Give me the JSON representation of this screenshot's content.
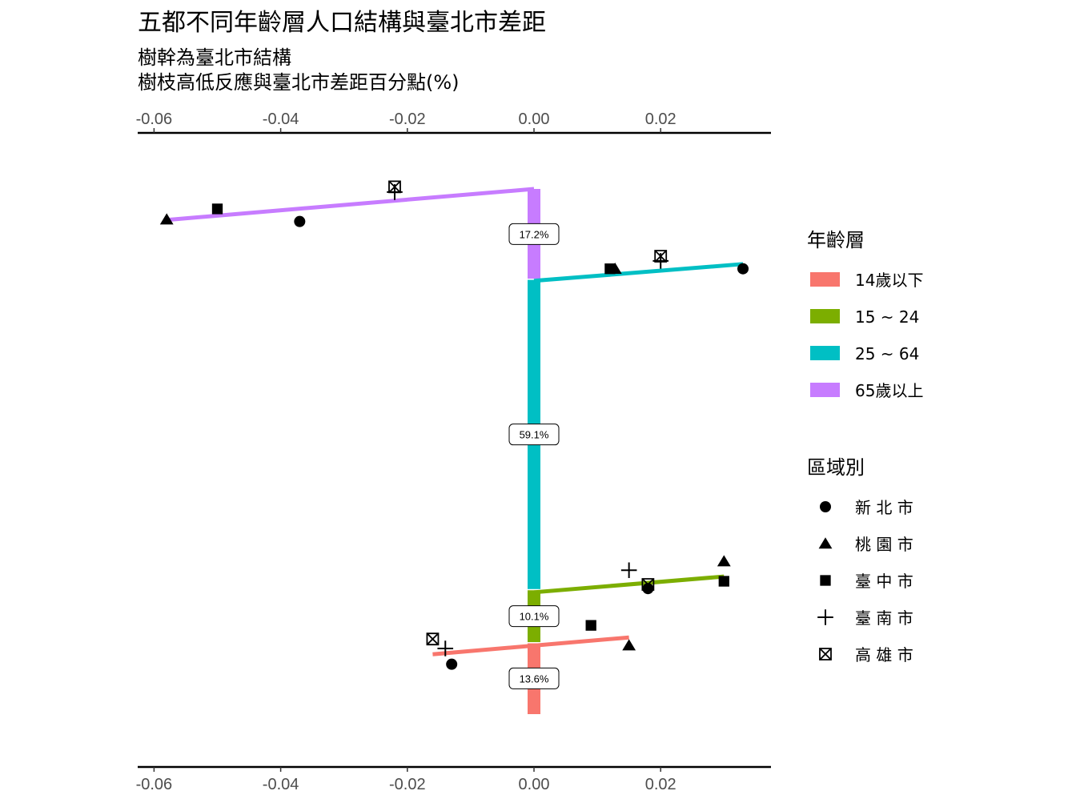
{
  "chart_data": {
    "type": "scatter",
    "title": "五都不同年齡層人口結構與臺北市差距",
    "subtitle_lines": [
      "樹幹為臺北市結構",
      "樹枝高低反應與臺北市差距百分點(%)"
    ],
    "xlim": [
      -0.062,
      0.038
    ],
    "x_ticks": [
      -0.06,
      -0.04,
      -0.02,
      0.0,
      0.02
    ],
    "x_tick_labels": [
      "-0.06",
      "-0.04",
      "-0.02",
      "0.00",
      "0.02"
    ],
    "x_axis_position": "top-and-bottom",
    "grid": false,
    "trunk": [
      {
        "group": "14歲以下",
        "share": 13.6,
        "label": "13.6%"
      },
      {
        "group": "15 ~ 24",
        "share": 10.1,
        "label": "10.1%"
      },
      {
        "group": "25 ~ 64",
        "share": 59.1,
        "label": "59.1%"
      },
      {
        "group": "65歲以上",
        "share": 17.2,
        "label": "17.2%"
      }
    ],
    "branches": [
      {
        "group": "65歲以上",
        "x": [
          0,
          -0.058
        ],
        "y": [
          100,
          94.1
        ]
      },
      {
        "group": "25 ~ 64",
        "x": [
          0,
          0.033
        ],
        "y": [
          82.5,
          85.7
        ]
      },
      {
        "group": "15 ~ 24",
        "x": [
          0,
          0.03
        ],
        "y": [
          23.2,
          26.2
        ]
      },
      {
        "group": "14歲以下",
        "x": [
          -0.016,
          0.015
        ],
        "y": [
          11.4,
          14.6
        ]
      }
    ],
    "points": [
      {
        "group": "65歲以上",
        "region": "新 北 市",
        "x": -0.037,
        "y": 93.8
      },
      {
        "group": "65歲以上",
        "region": "桃 園 市",
        "x": -0.058,
        "y": 94.2
      },
      {
        "group": "65歲以上",
        "region": "臺 中 市",
        "x": -0.05,
        "y": 96.2
      },
      {
        "group": "65歲以上",
        "region": "臺 南 市",
        "x": -0.022,
        "y": 99.4
      },
      {
        "group": "65歲以上",
        "region": "高 雄 市",
        "x": -0.022,
        "y": 100.4
      },
      {
        "group": "25 ~ 64",
        "region": "新 北 市",
        "x": 0.033,
        "y": 84.8
      },
      {
        "group": "25 ~ 64",
        "region": "桃 園 市",
        "x": 0.0128,
        "y": 84.8
      },
      {
        "group": "25 ~ 64",
        "region": "臺 中 市",
        "x": 0.012,
        "y": 84.8
      },
      {
        "group": "25 ~ 64",
        "region": "臺 南 市",
        "x": 0.02,
        "y": 86.3
      },
      {
        "group": "25 ~ 64",
        "region": "高 雄 市",
        "x": 0.02,
        "y": 87.2
      },
      {
        "group": "15 ~ 24",
        "region": "新 北 市",
        "x": 0.018,
        "y": 23.9
      },
      {
        "group": "15 ~ 24",
        "region": "桃 園 市",
        "x": 0.03,
        "y": 29.1
      },
      {
        "group": "15 ~ 24",
        "region": "臺 中 市",
        "x": 0.03,
        "y": 25.3
      },
      {
        "group": "15 ~ 24",
        "region": "臺 南 市",
        "x": 0.015,
        "y": 27.4
      },
      {
        "group": "15 ~ 24",
        "region": "高 雄 市",
        "x": 0.018,
        "y": 24.7
      },
      {
        "group": "14歲以下",
        "region": "新 北 市",
        "x": -0.013,
        "y": 9.5
      },
      {
        "group": "14歲以下",
        "region": "桃 園 市",
        "x": 0.015,
        "y": 13.1
      },
      {
        "group": "14歲以下",
        "region": "臺 中 市",
        "x": 0.009,
        "y": 16.9
      },
      {
        "group": "14歲以下",
        "region": "臺 南 市",
        "x": -0.014,
        "y": 12.5
      },
      {
        "group": "14歲以下",
        "region": "高 雄 市",
        "x": -0.016,
        "y": 14.3
      }
    ],
    "legend_position": "right",
    "color_legend": {
      "title": "年齡層",
      "entries": [
        {
          "name": "14歲以下",
          "color": "#F8766D"
        },
        {
          "name": "15 ~ 24",
          "color": "#7CAE00"
        },
        {
          "name": "25 ~ 64",
          "color": "#00BFC4"
        },
        {
          "name": "65歲以上",
          "color": "#C77CFF"
        }
      ]
    },
    "shape_legend": {
      "title": "區域別",
      "entries": [
        {
          "name": "新 北 市",
          "shape": "circle"
        },
        {
          "name": "桃 園 市",
          "shape": "triangle"
        },
        {
          "name": "臺 中 市",
          "shape": "square"
        },
        {
          "name": "臺 南 市",
          "shape": "plus"
        },
        {
          "name": "高 雄 市",
          "shape": "square-cross"
        }
      ]
    }
  }
}
